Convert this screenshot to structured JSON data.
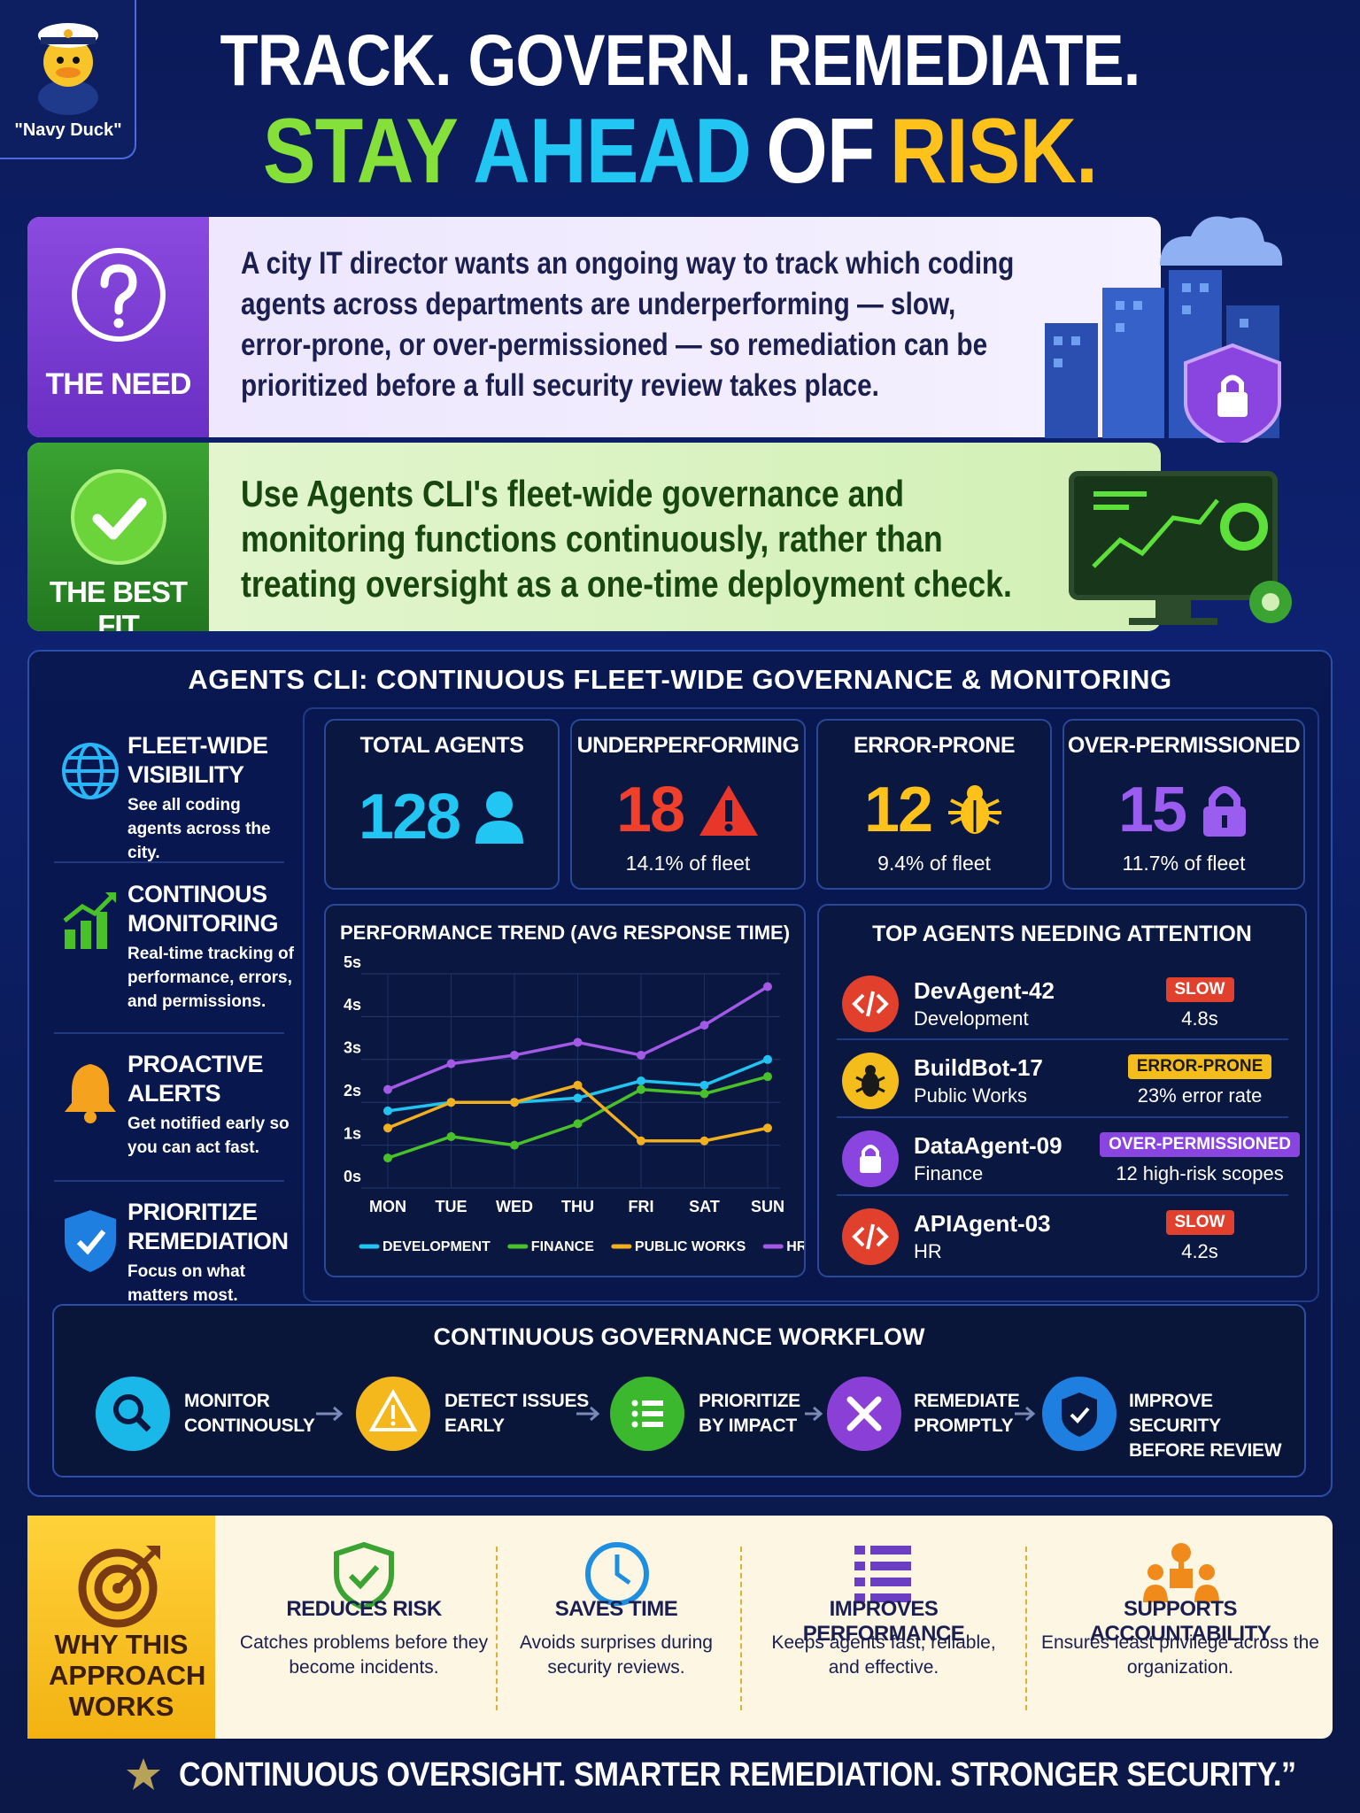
{
  "header": {
    "logo_label": "\"Navy Duck\"",
    "title_line1": "TRACK. GOVERN. REMEDIATE.",
    "title_line2": [
      "STAY",
      "AHEAD",
      "OF",
      "RISK."
    ]
  },
  "need": {
    "label": "THE NEED",
    "text": "A city IT director wants an ongoing way to track which coding agents across departments are underperforming — slow, error-prone, or over-permissioned — so remediation can be prioritized before a full security review takes place."
  },
  "best_fit": {
    "label": "THE BEST FIT",
    "text": "Use Agents CLI's fleet-wide governance and monitoring functions continuously, rather than treating oversight as a one-time deployment check."
  },
  "dashboard": {
    "title": "AGENTS CLI: CONTINUOUS FLEET-WIDE GOVERNANCE & MONITORING",
    "features": [
      {
        "title": "FLEET-WIDE VISIBILITY",
        "text": "See all coding agents across the city."
      },
      {
        "title": "CONTINOUS MONITORING",
        "text": "Real-time tracking of performance, errors, and permissions."
      },
      {
        "title": "PROACTIVE ALERTS",
        "text": "Get notified early so you can act fast."
      },
      {
        "title": "PRIORITIZE REMEDIATION",
        "text": "Focus on what matters most."
      }
    ],
    "stats": [
      {
        "label": "TOTAL AGENTS",
        "value": 128
      },
      {
        "label": "UNDERPERFORMING",
        "value": 18,
        "note": "14.1% of fleet"
      },
      {
        "label": "ERROR-PRONE",
        "value": 12,
        "note": "9.4% of fleet"
      },
      {
        "label": "OVER-PERMISSIONED",
        "value": 15,
        "note": "11.7% of fleet"
      }
    ],
    "attention": {
      "title": "TOP AGENTS NEEDING ATTENTION",
      "agents": [
        {
          "name": "DevAgent-42",
          "dept": "Development",
          "badge": "SLOW",
          "metric": "4.8s"
        },
        {
          "name": "BuildBot-17",
          "dept": "Public Works",
          "badge": "ERROR-PRONE",
          "metric": "23% error rate"
        },
        {
          "name": "DataAgent-09",
          "dept": "Finance",
          "badge": "OVER-PERMISSIONED",
          "metric": "12 high-risk scopes"
        },
        {
          "name": "APIAgent-03",
          "dept": "HR",
          "badge": "SLOW",
          "metric": "4.2s"
        }
      ]
    }
  },
  "workflow": {
    "title": "CONTINUOUS GOVERNANCE WORKFLOW",
    "steps": [
      "MONITOR CONTINOUSLY",
      "DETECT ISSUES EARLY",
      "PRIORITIZE BY IMPACT",
      "REMEDIATE PROMPTLY",
      "IMPROVE SECURITY BEFORE REVIEW"
    ]
  },
  "why": {
    "title": "WHY THIS APPROACH WORKS",
    "items": [
      {
        "title": "REDUCES RISK",
        "text": "Catches problems before they become incidents."
      },
      {
        "title": "SAVES TIME",
        "text": "Avoids surprises during security reviews."
      },
      {
        "title": "IMPROVES PERFORMANCE",
        "text": "Keeps agents fast, reliable, and effective."
      },
      {
        "title": "SUPPORTS ACCOUNTABILITY",
        "text": "Ensures least privilege across the organization."
      }
    ]
  },
  "footer": "CONTINUOUS OVERSIGHT. SMARTER REMEDIATION. STRONGER SECURITY.”",
  "chart_data": {
    "type": "line",
    "title": "PERFORMANCE TREND (AVG RESPONSE TIME)",
    "categories": [
      "MON",
      "TUE",
      "WED",
      "THU",
      "FRI",
      "SAT",
      "SUN"
    ],
    "series": [
      {
        "name": "DEVELOPMENT",
        "color": "#22c3f0",
        "values": [
          1.8,
          2.0,
          2.0,
          2.1,
          2.5,
          2.4,
          3.0
        ]
      },
      {
        "name": "FINANCE",
        "color": "#49c22a",
        "values": [
          0.7,
          1.2,
          1.0,
          1.5,
          2.3,
          2.2,
          2.6
        ]
      },
      {
        "name": "PUBLIC WORKS",
        "color": "#f2b01e",
        "values": [
          1.4,
          2.0,
          2.0,
          2.4,
          1.1,
          1.1,
          1.4
        ]
      },
      {
        "name": "HR",
        "color": "#a259e6",
        "values": [
          2.3,
          2.9,
          3.1,
          3.4,
          3.1,
          3.8,
          4.7
        ]
      }
    ],
    "ylim": [
      0,
      5
    ],
    "yticks": [
      {
        "value": 0,
        "label": "0s"
      },
      {
        "value": 1,
        "label": "1s"
      },
      {
        "value": 2,
        "label": "2s"
      },
      {
        "value": 3,
        "label": "3s"
      },
      {
        "value": 4,
        "label": "4s"
      },
      {
        "value": 5,
        "label": "5s"
      }
    ],
    "grid": true,
    "legend": "bottom"
  }
}
